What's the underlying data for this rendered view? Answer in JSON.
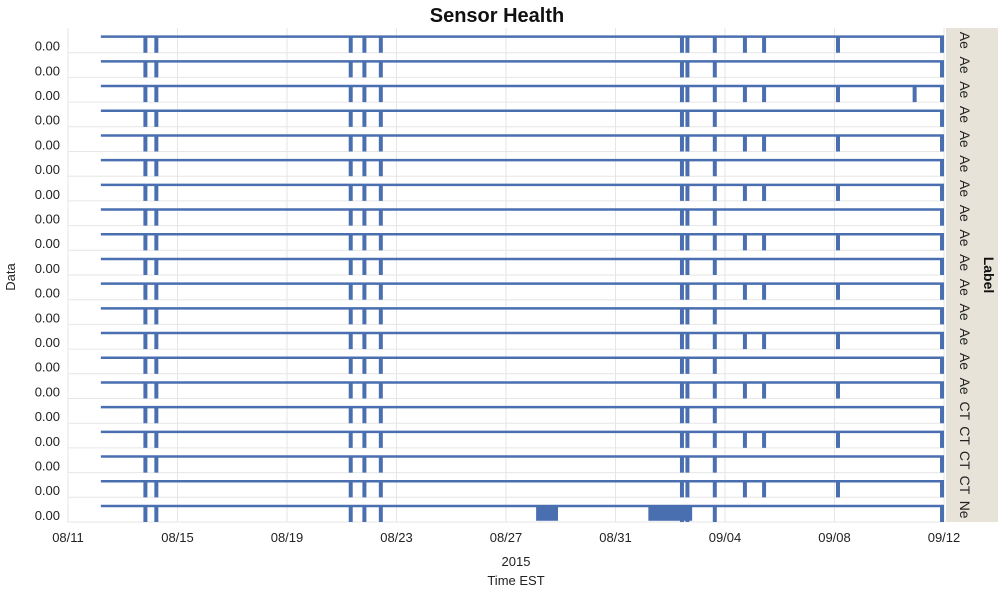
{
  "chart_data": {
    "type": "line",
    "title": "Sensor Health",
    "xlabel": "Time EST",
    "x_sublabel": "2015",
    "ylabel": "Data",
    "facet_title": "Label",
    "x_ticks": [
      "08/11",
      "08/15",
      "08/19",
      "08/23",
      "08/27",
      "08/31",
      "09/04",
      "09/08",
      "09/12"
    ],
    "xlim": [
      "2015-08-11",
      "2015-09-12"
    ],
    "grid": true,
    "colors": {
      "series": "#4a6fb0",
      "grid": "#e6e6e6",
      "strip": "#e8e3d8"
    },
    "rows": [
      {
        "label": "Ae",
        "y_tick": "0.00"
      },
      {
        "label": "Ae",
        "y_tick": "0.00"
      },
      {
        "label": "Ae",
        "y_tick": "0.00"
      },
      {
        "label": "Ae",
        "y_tick": "0.00"
      },
      {
        "label": "Ae",
        "y_tick": "0.00"
      },
      {
        "label": "Ae",
        "y_tick": "0.00"
      },
      {
        "label": "Ae",
        "y_tick": "0.00"
      },
      {
        "label": "Ae",
        "y_tick": "0.00"
      },
      {
        "label": "Ae",
        "y_tick": "0.00"
      },
      {
        "label": "Ae",
        "y_tick": "0.00"
      },
      {
        "label": "Ae",
        "y_tick": "0.00"
      },
      {
        "label": "Ae",
        "y_tick": "0.00"
      },
      {
        "label": "Ae",
        "y_tick": "0.00"
      },
      {
        "label": "Ae",
        "y_tick": "0.00"
      },
      {
        "label": "Ae",
        "y_tick": "0.00"
      },
      {
        "label": "CT",
        "y_tick": "0.00"
      },
      {
        "label": "CT",
        "y_tick": "0.00"
      },
      {
        "label": "CT",
        "y_tick": "0.00"
      },
      {
        "label": "CT",
        "y_tick": "0.00"
      },
      {
        "label": "Ne",
        "y_tick": "0.00"
      }
    ],
    "gap_dates_common": [
      "2015-08-13.8",
      "2015-08-14.2",
      "2015-08-21.3",
      "2015-08-21.8",
      "2015-08-22.4",
      "2015-09-02.4",
      "2015-09-02.6",
      "2015-09-03.6",
      "2015-09-11.9"
    ],
    "gap_dates_extra": [
      "2015-09-04.7",
      "2015-09-05.4",
      "2015-09-08.1",
      "2015-09-10.9"
    ]
  }
}
